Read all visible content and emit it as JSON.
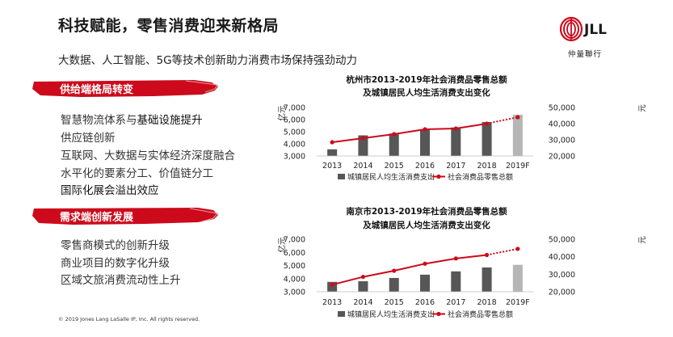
{
  "slide": {
    "title": "科技赋能，零售消费迎来新格局",
    "subtitle": "大数据、人工智能、5G等技术创新助力消费市场保持强劲动力",
    "logo_text": "JLL",
    "logo_subtext": "仲量聯行",
    "footer": "© 2019 Jones Lang LaSalle IP, Inc. All rights reserved.",
    "colors": {
      "accent_red": "#cc0a1b",
      "bar_dark": "#575757",
      "bar_forecast": "#b5b5b5",
      "line_red": "#cc0a1b"
    }
  },
  "sections": [
    {
      "banner": "供给端格局转变",
      "items": [
        {
          "pre": "智慧物流体系与",
          "post": "基础设施提升"
        },
        {
          "pre": "供应链创新",
          "post": ""
        },
        {
          "pre": "互联网、大数据与实体经济深度融合",
          "post": ""
        },
        {
          "pre": "水平化的要素分工、价值链分工",
          "post": ""
        },
        {
          "pre": "",
          "post": "国际化展会溢出效应"
        }
      ]
    },
    {
      "banner": "需求端创新发展",
      "items": [
        {
          "pre": "零售商模式的创新升级",
          "post": ""
        },
        {
          "pre": "商业项目的数字化升级",
          "post": ""
        },
        {
          "pre": "区域文旅消费流动性上升",
          "post": ""
        }
      ]
    }
  ],
  "chart_data": [
    {
      "type": "bar+line",
      "title_line1": "杭州市2013-2019年社会消费品零售总额",
      "title_line2": "及城镇居民人均生活消费支出变化",
      "categories": [
        "2013",
        "2014",
        "2015",
        "2016",
        "2017",
        "2018",
        "2019F"
      ],
      "left_unit": "亿元",
      "right_unit": "元",
      "left_ticks": [
        "7,000",
        "6,000",
        "5,000",
        "4,000",
        "3,000"
      ],
      "right_ticks": [
        "50,000",
        "40,000",
        "30,000",
        "20,000"
      ],
      "left_range": [
        3000,
        7000
      ],
      "right_range": [
        20000,
        50000
      ],
      "series": [
        {
          "name": "城镇居民人均生活消费支出",
          "kind": "bar",
          "values": [
            3550,
            4700,
            4850,
            5150,
            5350,
            5800,
            6400
          ]
        },
        {
          "name": "社会消费品零售总额",
          "kind": "line",
          "values": [
            28500,
            31000,
            33500,
            36500,
            37000,
            40000,
            44000
          ]
        }
      ]
    },
    {
      "type": "bar+line",
      "title_line1": "南京市2013-2019年社会消费品零售总额",
      "title_line2": "及城镇居民人均生活消费支出变化",
      "categories": [
        "2013",
        "2014",
        "2015",
        "2016",
        "2017",
        "2018",
        "2019F"
      ],
      "left_unit": "亿元",
      "right_unit": "元",
      "left_ticks": [
        "7,000",
        "6,000",
        "5,000",
        "4,000",
        "3,000"
      ],
      "right_ticks": [
        "50,000",
        "40,000",
        "30,000",
        "20,000"
      ],
      "left_range": [
        3000,
        7000
      ],
      "right_range": [
        20000,
        50000
      ],
      "series": [
        {
          "name": "城镇居民人均生活消费支出",
          "kind": "bar",
          "values": [
            3750,
            3800,
            4050,
            4300,
            4550,
            4850,
            5050
          ]
        },
        {
          "name": "社会消费品零售总额",
          "kind": "line",
          "values": [
            24000,
            28500,
            32000,
            36000,
            39000,
            41000,
            44500
          ]
        }
      ]
    }
  ]
}
